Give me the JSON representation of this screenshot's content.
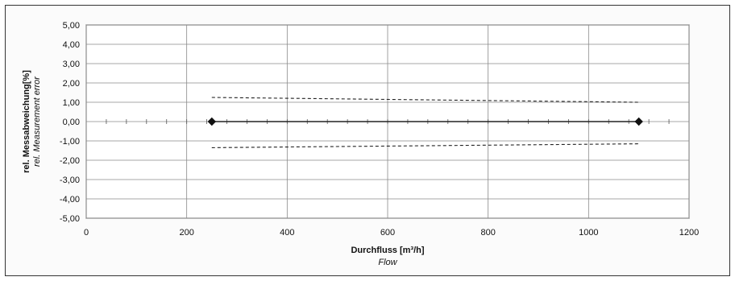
{
  "chart_data": {
    "type": "line",
    "xlabel": "Durchfluss [m³/h]",
    "xlabel_sub": "Flow",
    "ylabel": "rel. Messabweichung[%]",
    "ylabel_sub": "rel. Measurement error",
    "xlim": [
      0,
      1200
    ],
    "ylim": [
      -5,
      5
    ],
    "x_ticks": [
      "0",
      "200",
      "400",
      "600",
      "800",
      "1000",
      "1200"
    ],
    "y_ticks": [
      "5,00",
      "4,00",
      "3,00",
      "2,00",
      "1,00",
      "0,00",
      "-1,00",
      "-2,00",
      "-3,00",
      "-4,00",
      "-5,00"
    ],
    "grid": true,
    "series": [
      {
        "style": "solid",
        "marker": "diamond",
        "x": [
          250,
          1100
        ],
        "y": [
          0.0,
          0.0
        ]
      },
      {
        "style": "dashed",
        "x": [
          250,
          1100
        ],
        "y": [
          1.25,
          1.0
        ]
      },
      {
        "style": "dashed",
        "x": [
          250,
          1100
        ],
        "y": [
          -1.35,
          -1.15
        ]
      }
    ],
    "minor_ticks_on_zero_line": true
  }
}
